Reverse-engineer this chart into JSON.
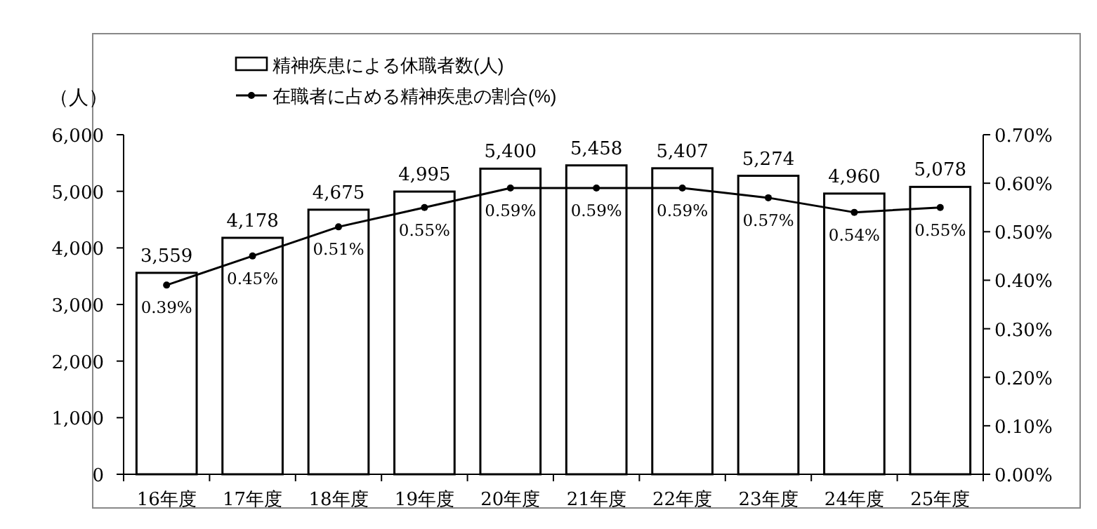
{
  "chart_data": {
    "type": "bar",
    "ylabel": "（人）",
    "legend": "top",
    "marker": "circle",
    "categories": [
      "16年度",
      "17年度",
      "18年度",
      "19年度",
      "20年度",
      "21年度",
      "22年度",
      "23年度",
      "24年度",
      "25年度"
    ],
    "ylim": [
      0,
      6000
    ],
    "yticks": [
      {
        "value": 0,
        "label": "0"
      },
      {
        "value": 1000,
        "label": "1,000"
      },
      {
        "value": 2000,
        "label": "2,000"
      },
      {
        "value": 3000,
        "label": "3,000"
      },
      {
        "value": 4000,
        "label": "4,000"
      },
      {
        "value": 5000,
        "label": "5,000"
      },
      {
        "value": 6000,
        "label": "6,000"
      }
    ],
    "y2lim": [
      0,
      0.7
    ],
    "y2ticks": [
      {
        "value": 0,
        "label": "0.00%"
      },
      {
        "value": 0.1,
        "label": "0.10%"
      },
      {
        "value": 0.2,
        "label": "0.20%"
      },
      {
        "value": 0.3,
        "label": "0.30%"
      },
      {
        "value": 0.4,
        "label": "0.40%"
      },
      {
        "value": 0.5,
        "label": "0.50%"
      },
      {
        "value": 0.6,
        "label": "0.60%"
      },
      {
        "value": 0.7,
        "label": "0.70%"
      }
    ],
    "series": [
      {
        "name": "精神疾患による休職者数(人)",
        "color": "#ffffff",
        "values": [
          3559,
          4178,
          4675,
          4995,
          5400,
          5458,
          5407,
          5274,
          4960,
          5078
        ],
        "value_labels": [
          "3,559",
          "4,178",
          "4,675",
          "4,995",
          "5,400",
          "5,458",
          "5,407",
          "5,274",
          "4,960",
          "5,078"
        ]
      },
      {
        "type": "line",
        "axis": "y2",
        "name": "在職者に占める精神疾患の割合(%)",
        "color": "#000000",
        "values": [
          0.39,
          0.45,
          0.51,
          0.55,
          0.59,
          0.59,
          0.59,
          0.57,
          0.54,
          0.55
        ],
        "value_labels": [
          "0.39%",
          "0.45%",
          "0.51%",
          "0.55%",
          "0.59%",
          "0.59%",
          "0.59%",
          "0.57%",
          "0.54%",
          "0.55%"
        ]
      }
    ]
  }
}
